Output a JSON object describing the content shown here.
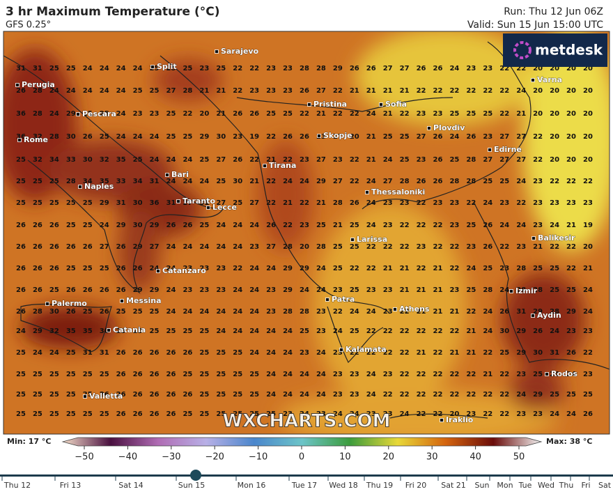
{
  "header": {
    "title": "3 hr Maximum Temperature (°C)",
    "model": "GFS 0.25°",
    "run": "Run: Thu 12 Jun 06Z",
    "valid": "Valid: Sun 15 Jun 15:00 UTC",
    "logo": "metdesk",
    "watermark": "WXCHARTS.COM"
  },
  "grid": {
    "rows": [
      [
        31,
        31,
        25,
        25,
        24,
        24,
        24,
        24,
        25,
        25,
        25,
        23,
        25,
        22,
        22,
        23,
        23,
        28,
        28,
        29,
        26,
        26,
        27,
        27,
        26,
        26,
        24,
        23,
        23,
        22,
        22,
        20,
        20,
        20,
        20
      ],
      [
        26,
        28,
        24,
        24,
        24,
        24,
        24,
        25,
        25,
        27,
        28,
        21,
        21,
        22,
        23,
        23,
        23,
        26,
        27,
        22,
        21,
        21,
        21,
        21,
        22,
        22,
        22,
        22,
        22,
        22,
        24,
        20,
        20,
        20,
        20
      ],
      [
        36,
        28,
        24,
        29,
        25,
        25,
        24,
        23,
        23,
        25,
        22,
        20,
        21,
        26,
        26,
        25,
        25,
        22,
        21,
        22,
        22,
        24,
        21,
        22,
        23,
        23,
        25,
        25,
        25,
        22,
        21,
        20,
        20,
        20,
        20
      ],
      [
        36,
        32,
        28,
        30,
        26,
        25,
        24,
        24,
        24,
        25,
        25,
        29,
        30,
        23,
        19,
        22,
        26,
        26,
        23,
        17,
        20,
        21,
        25,
        25,
        27,
        26,
        24,
        26,
        23,
        27,
        27,
        22,
        20,
        20,
        20
      ],
      [
        25,
        32,
        34,
        33,
        30,
        32,
        35,
        25,
        24,
        24,
        24,
        25,
        27,
        26,
        22,
        21,
        22,
        23,
        27,
        23,
        22,
        21,
        24,
        25,
        23,
        26,
        25,
        28,
        27,
        27,
        27,
        22,
        20,
        20,
        20
      ],
      [
        25,
        25,
        25,
        28,
        34,
        35,
        33,
        34,
        31,
        24,
        24,
        24,
        25,
        30,
        21,
        22,
        24,
        24,
        29,
        27,
        22,
        24,
        27,
        28,
        26,
        26,
        28,
        28,
        25,
        25,
        24,
        23,
        22,
        22,
        22
      ],
      [
        25,
        25,
        25,
        25,
        25,
        29,
        31,
        30,
        36,
        31,
        27,
        31,
        27,
        25,
        27,
        22,
        21,
        22,
        21,
        28,
        26,
        24,
        23,
        23,
        22,
        23,
        23,
        22,
        24,
        23,
        22,
        23,
        23,
        23,
        23
      ],
      [
        26,
        26,
        26,
        25,
        25,
        24,
        29,
        30,
        29,
        26,
        26,
        25,
        24,
        24,
        24,
        26,
        22,
        23,
        25,
        21,
        25,
        24,
        23,
        22,
        22,
        22,
        23,
        25,
        26,
        24,
        24,
        23,
        24,
        21,
        19
      ],
      [
        26,
        26,
        26,
        26,
        26,
        27,
        26,
        29,
        27,
        24,
        24,
        24,
        24,
        24,
        23,
        27,
        28,
        20,
        28,
        25,
        25,
        22,
        22,
        22,
        23,
        22,
        22,
        23,
        26,
        22,
        23,
        21,
        22,
        22,
        20
      ],
      [
        26,
        26,
        26,
        25,
        25,
        25,
        26,
        26,
        24,
        24,
        23,
        23,
        23,
        22,
        24,
        24,
        29,
        29,
        24,
        25,
        22,
        22,
        21,
        21,
        22,
        21,
        22,
        24,
        25,
        23,
        28,
        25,
        25,
        22,
        21
      ],
      [
        26,
        26,
        25,
        26,
        26,
        26,
        26,
        29,
        29,
        24,
        23,
        23,
        23,
        24,
        24,
        23,
        29,
        24,
        24,
        23,
        25,
        23,
        23,
        21,
        21,
        21,
        23,
        25,
        28,
        24,
        28,
        28,
        25,
        25,
        24
      ],
      [
        26,
        28,
        30,
        26,
        25,
        26,
        25,
        25,
        25,
        24,
        24,
        24,
        24,
        24,
        24,
        23,
        28,
        28,
        23,
        22,
        24,
        24,
        23,
        22,
        21,
        21,
        21,
        22,
        24,
        26,
        31,
        29,
        28,
        29,
        24
      ],
      [
        24,
        29,
        32,
        35,
        35,
        30,
        25,
        25,
        25,
        25,
        25,
        25,
        24,
        24,
        24,
        24,
        24,
        25,
        23,
        24,
        25,
        22,
        22,
        22,
        22,
        22,
        22,
        21,
        24,
        30,
        29,
        26,
        24,
        23,
        23
      ],
      [
        25,
        24,
        24,
        25,
        31,
        31,
        26,
        26,
        26,
        26,
        26,
        25,
        25,
        25,
        24,
        24,
        24,
        23,
        24,
        23,
        22,
        22,
        22,
        22,
        21,
        22,
        21,
        21,
        22,
        25,
        29,
        30,
        31,
        26,
        22
      ],
      [
        25,
        25,
        25,
        25,
        25,
        25,
        26,
        26,
        26,
        26,
        25,
        25,
        25,
        25,
        25,
        24,
        24,
        24,
        24,
        23,
        23,
        24,
        23,
        22,
        22,
        22,
        22,
        22,
        21,
        22,
        23,
        25,
        24,
        24,
        23
      ],
      [
        25,
        25,
        25,
        25,
        25,
        26,
        26,
        26,
        26,
        26,
        26,
        25,
        25,
        25,
        25,
        24,
        24,
        24,
        24,
        23,
        23,
        24,
        22,
        22,
        22,
        22,
        22,
        22,
        22,
        22,
        24,
        29,
        25,
        25,
        25
      ],
      [
        25,
        25,
        25,
        25,
        25,
        25,
        26,
        26,
        26,
        26,
        25,
        25,
        25,
        25,
        25,
        25,
        23,
        24,
        23,
        24,
        24,
        23,
        23,
        24,
        22,
        22,
        20,
        23,
        22,
        22,
        23,
        23,
        24,
        24,
        26
      ]
    ]
  },
  "cities": [
    "Sarajevo",
    "Split",
    "Perugia",
    "Varna",
    "Pristina",
    "Sofia",
    "Pescara",
    "Plovdiv",
    "Skopje",
    "Rome",
    "Edirne",
    "Tirana",
    "Bari",
    "Naples",
    "Thessaloniki",
    "Taranto",
    "Lecce",
    "Balikesir",
    "Larissa",
    "Catanzaro",
    "Izmir",
    "Messina",
    "Palermo",
    "Patra",
    "Athens",
    "Aydin",
    "Catania",
    "Kalamata",
    "Rodos",
    "Valletta",
    "Iraklio"
  ],
  "legend": {
    "min": "Min: 17 °C",
    "max": "Max: 38 °C",
    "ticks": [
      "−50",
      "−40",
      "−30",
      "−20",
      "−10",
      "0",
      "10",
      "20",
      "30",
      "40",
      "50"
    ]
  },
  "timeline": {
    "labels": [
      "Thu 12",
      "Fri 13",
      "Sat 14",
      "Sun 15",
      "Mon 16",
      "Tue 17",
      "Wed 18",
      "Thu 19",
      "Fri 20",
      "Sat 21",
      "Sun",
      "Mon",
      "Tue",
      "Wed",
      "Thu",
      "Fri",
      "Sat"
    ]
  }
}
